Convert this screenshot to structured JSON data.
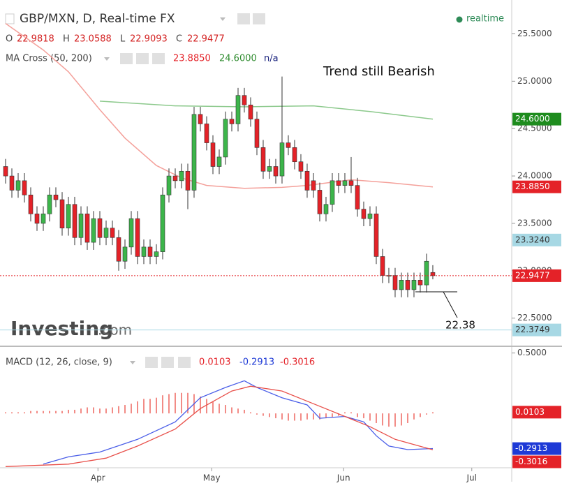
{
  "chart_data": [
    {
      "type": "candlestick",
      "title": "GBP/MXN, D, Real-time FX",
      "status": "realtime",
      "ohlc_labels": [
        "O",
        "H",
        "L",
        "C"
      ],
      "watermark": [
        "Investing",
        ".com"
      ],
      "annotations": [
        "Trend still Bearish",
        "22.38"
      ],
      "xlim": [
        -0.89,
        80.56
      ],
      "ylim": [
        22.21,
        25.71
      ],
      "yticks": [
        {
          "value": 25.5,
          "label": "25.5000"
        },
        {
          "value": 25.0,
          "label": "25.0000"
        },
        {
          "value": 24.5,
          "label": "24.5000"
        },
        {
          "value": 24.0,
          "label": "24.0000"
        },
        {
          "value": 23.5,
          "label": "23.5000"
        },
        {
          "value": 23.0,
          "label": "23.0000"
        },
        {
          "value": 22.5,
          "label": "22.5000"
        }
      ],
      "up_color": "#3cb54a",
      "down_color": "#e42228",
      "candles": {
        "open": [
          24.1,
          24.0,
          23.85,
          23.95,
          23.8,
          23.6,
          23.5,
          23.6,
          23.8,
          23.75,
          23.45,
          23.7,
          23.35,
          23.6,
          23.3,
          23.55,
          23.35,
          23.45,
          23.35,
          23.1,
          23.25,
          23.55,
          23.15,
          23.25,
          23.15,
          23.2,
          23.8,
          24.0,
          23.95,
          24.05,
          23.85,
          24.65,
          24.55,
          24.35,
          24.1,
          24.2,
          24.6,
          24.55,
          24.85,
          24.75,
          24.6,
          24.3,
          24.05,
          24.1,
          24.0,
          24.35,
          24.3,
          24.15,
          24.05,
          23.95,
          23.85,
          23.6,
          23.7,
          23.95,
          23.9,
          23.95,
          23.9,
          23.65,
          23.55,
          23.6,
          23.15,
          22.95,
          22.95,
          22.8,
          22.9,
          22.8,
          22.9,
          22.85,
          22.9818
        ],
        "high": [
          24.18,
          24.08,
          24.03,
          24.03,
          23.88,
          23.68,
          23.68,
          23.88,
          23.88,
          23.83,
          23.78,
          23.78,
          23.68,
          23.68,
          23.63,
          23.63,
          23.53,
          23.53,
          23.43,
          23.33,
          23.63,
          23.63,
          23.33,
          23.33,
          23.28,
          23.88,
          24.08,
          24.08,
          24.13,
          24.13,
          24.73,
          24.73,
          24.63,
          24.43,
          24.28,
          24.68,
          24.68,
          24.93,
          24.93,
          24.83,
          24.68,
          24.38,
          24.18,
          24.18,
          25.05,
          24.43,
          24.38,
          24.23,
          24.13,
          24.03,
          23.93,
          23.78,
          24.03,
          24.03,
          24.03,
          24.2,
          23.98,
          23.73,
          23.68,
          23.68,
          23.23,
          23.03,
          23.03,
          22.98,
          22.98,
          22.98,
          22.98,
          23.18,
          23.0588
        ],
        "low": [
          23.92,
          23.77,
          23.77,
          23.72,
          23.52,
          23.42,
          23.42,
          23.52,
          23.67,
          23.37,
          23.37,
          23.27,
          23.27,
          23.22,
          23.22,
          23.27,
          23.27,
          23.27,
          23.0,
          23.02,
          23.17,
          23.07,
          23.07,
          23.07,
          23.07,
          23.12,
          23.72,
          23.87,
          23.87,
          23.65,
          23.77,
          24.47,
          24.27,
          24.02,
          24.02,
          24.12,
          24.47,
          24.47,
          24.67,
          24.52,
          24.22,
          23.97,
          23.97,
          23.92,
          23.92,
          24.22,
          24.07,
          23.97,
          23.77,
          23.77,
          23.52,
          23.52,
          23.62,
          23.82,
          23.82,
          23.82,
          23.57,
          23.47,
          23.47,
          23.07,
          22.87,
          22.87,
          22.72,
          22.72,
          22.72,
          22.72,
          22.77,
          22.77,
          22.9093
        ],
        "close": [
          24.0,
          23.85,
          23.95,
          23.8,
          23.6,
          23.5,
          23.6,
          23.8,
          23.75,
          23.45,
          23.7,
          23.35,
          23.6,
          23.3,
          23.55,
          23.35,
          23.45,
          23.35,
          23.1,
          23.25,
          23.55,
          23.15,
          23.25,
          23.15,
          23.2,
          23.8,
          24.0,
          23.95,
          24.05,
          23.85,
          24.65,
          24.55,
          24.35,
          24.1,
          24.2,
          24.6,
          24.55,
          24.85,
          24.75,
          24.6,
          24.3,
          24.05,
          24.1,
          24.0,
          24.35,
          24.3,
          24.15,
          24.05,
          23.85,
          23.85,
          23.6,
          23.7,
          23.95,
          23.9,
          23.95,
          23.9,
          23.65,
          23.55,
          23.6,
          23.15,
          22.95,
          22.95,
          22.8,
          22.9,
          22.8,
          22.9,
          22.85,
          23.1,
          22.9477
        ]
      },
      "indicator": {
        "title": "MA Cross (50, 200)",
        "legend_values": [
          {
            "value": 23.885,
            "label": "23.8850",
            "color": "#e42228"
          },
          {
            "value": 24.6,
            "label": "24.6000",
            "color": "#2e8b2e"
          },
          {
            "label": "n/a",
            "color": "#1a237e"
          }
        ],
        "series": [
          {
            "color": "#f4a09a",
            "x": [
              0,
              6,
              10,
              15,
              19,
              24,
              28,
              32,
              38,
              44,
              48,
              55,
              61,
              68
            ],
            "values": [
              25.61,
              25.33,
              25.1,
              24.7,
              24.4,
              24.11,
              23.98,
              23.9,
              23.87,
              23.88,
              23.9,
              23.96,
              23.93,
              23.885
            ]
          },
          {
            "color": "#8cc98c",
            "x": [
              15,
              27,
              38,
              49,
              58,
              68
            ],
            "values": [
              24.79,
              24.74,
              24.73,
              24.74,
              24.68,
              24.6
            ]
          }
        ]
      },
      "price_labels": [
        {
          "value": 24.6,
          "label": "24.6000",
          "color": "#1e8c1e"
        },
        {
          "value": 23.885,
          "label": "23.8850",
          "color": "#e42228"
        },
        {
          "value": 23.324,
          "label": "23.3240",
          "color": "#a7d8e4",
          "text_color": "#333"
        },
        {
          "value": 22.9477,
          "label": "22.9477",
          "color": "#e42228",
          "line": "dotted"
        },
        {
          "value": 22.3749,
          "label": "22.3749",
          "color": "#a7d8e4",
          "text_color": "#333",
          "line": "solid"
        }
      ]
    },
    {
      "type": "macd",
      "title": "MACD (12, 26, close, 9)",
      "legend_values": [
        {
          "value": 0.0103,
          "color": "#e42228"
        },
        {
          "value": -0.2913,
          "color": "#1e3ad6"
        },
        {
          "value": -0.3016,
          "color": "#e42228"
        }
      ],
      "xlim": [
        -0.89,
        80.56
      ],
      "xticks": [
        {
          "value": 14.7,
          "label": "Apr"
        },
        {
          "value": 32.8,
          "label": "May"
        },
        {
          "value": 53.8,
          "label": "Jun"
        },
        {
          "value": 74.2,
          "label": "Jul"
        }
      ],
      "ylim": [
        -0.45,
        0.55
      ],
      "yticks": [
        {
          "value": 0.5,
          "label": "0.5000"
        }
      ],
      "histogram": {
        "color": "#f28b86",
        "values": [
          0.01,
          0.01,
          0.01,
          0.01,
          0.02,
          0.02,
          0.02,
          0.02,
          0.02,
          0.02,
          0.03,
          0.03,
          0.04,
          0.05,
          0.05,
          0.04,
          0.04,
          0.05,
          0.06,
          0.07,
          0.08,
          0.1,
          0.12,
          0.12,
          0.13,
          0.15,
          0.16,
          0.17,
          0.17,
          0.17,
          0.16,
          0.14,
          0.12,
          0.1,
          0.08,
          0.07,
          0.05,
          0.04,
          0.03,
          0.01,
          -0.01,
          -0.02,
          -0.03,
          -0.04,
          -0.05,
          -0.06,
          -0.06,
          -0.06,
          -0.05,
          -0.05,
          -0.05,
          -0.04,
          -0.03,
          -0.02,
          0.01,
          0.01,
          -0.03,
          -0.04,
          -0.06,
          -0.08,
          -0.1,
          -0.11,
          -0.11,
          -0.1,
          -0.08,
          -0.05,
          -0.03,
          -0.01,
          0.0103
        ]
      },
      "series": [
        {
          "color": "#4a5ee8",
          "x": [
            6,
            10,
            15,
            21,
            27,
            31,
            35,
            38,
            40,
            44,
            48,
            50,
            54,
            57,
            59,
            61,
            64,
            68
          ],
          "values": [
            -0.42,
            -0.36,
            -0.32,
            -0.215,
            -0.07,
            0.13,
            0.215,
            0.27,
            0.215,
            0.13,
            0.07,
            -0.04,
            -0.025,
            -0.07,
            -0.185,
            -0.27,
            -0.3,
            -0.2913
          ]
        },
        {
          "color": "#e8504a",
          "x": [
            0,
            10,
            16,
            21,
            27,
            31,
            36,
            39,
            44,
            49,
            54,
            58,
            62,
            68
          ],
          "values": [
            -0.44,
            -0.42,
            -0.37,
            -0.27,
            -0.13,
            0.04,
            0.185,
            0.225,
            0.185,
            0.08,
            -0.025,
            -0.11,
            -0.215,
            -0.3016
          ]
        }
      ],
      "price_labels": [
        {
          "value": 0.0103,
          "color": "#e42228"
        },
        {
          "value": -0.2913,
          "color": "#1e3ad6"
        },
        {
          "value": -0.3016,
          "color": "#e42228"
        }
      ]
    }
  ]
}
